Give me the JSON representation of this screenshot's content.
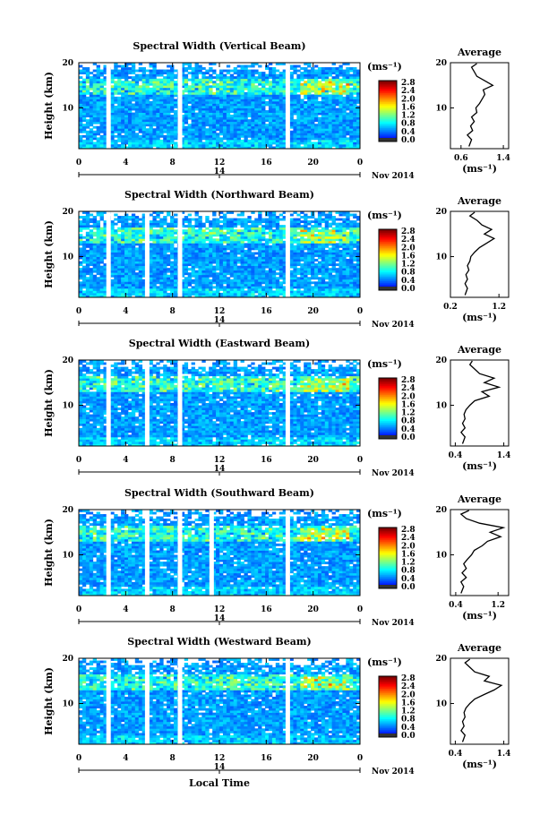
{
  "figure": {
    "xlabel": "Local Time",
    "date_label": "Nov 2014",
    "day_label": "14",
    "colorbar_unit": "(ms⁻¹)",
    "colorbar_ticks": [
      "0.0",
      "0.4",
      "0.8",
      "1.2",
      "1.6",
      "2.0",
      "2.4",
      "2.8"
    ],
    "profile_title": "Average",
    "profile_xlabel": "(ms⁻¹)",
    "ylabel": "Height (km)"
  },
  "chart_data": [
    {
      "type": "heatmap",
      "title": "Spectral Width (Vertical Beam)",
      "xlabel": "Local Time",
      "ylabel": "Height (km)",
      "x_ticks": [
        "0",
        "4",
        "8",
        "12",
        "16",
        "20",
        "0"
      ],
      "xlim": [
        0,
        24
      ],
      "y_ticks": [
        "10",
        "20"
      ],
      "ylim": [
        1,
        20
      ],
      "gaps_hours": [
        2.5,
        8.6,
        17.8
      ],
      "colorbar": {
        "unit": "(ms⁻¹)",
        "range": [
          0,
          3.0
        ]
      },
      "profile": {
        "title": "Average",
        "xlabel": "(ms⁻¹)",
        "x_ticks": [
          "0.6",
          "1.4"
        ],
        "xlim": [
          0.4,
          1.5
        ],
        "points": [
          [
            0.75,
            1.5
          ],
          [
            0.8,
            3
          ],
          [
            0.72,
            4
          ],
          [
            0.82,
            5
          ],
          [
            0.78,
            6
          ],
          [
            0.85,
            7
          ],
          [
            0.8,
            8
          ],
          [
            0.9,
            9
          ],
          [
            0.88,
            10
          ],
          [
            0.95,
            11
          ],
          [
            1.0,
            12
          ],
          [
            1.05,
            13
          ],
          [
            1.02,
            14
          ],
          [
            1.2,
            15
          ],
          [
            1.05,
            16
          ],
          [
            0.9,
            17
          ],
          [
            0.85,
            18
          ],
          [
            0.8,
            19
          ],
          [
            0.9,
            19.8
          ]
        ]
      }
    },
    {
      "type": "heatmap",
      "title": "Spectral Width (Northward Beam)",
      "xlabel": "Local Time",
      "ylabel": "Height (km)",
      "x_ticks": [
        "0",
        "4",
        "8",
        "12",
        "16",
        "20",
        "0"
      ],
      "xlim": [
        0,
        24
      ],
      "y_ticks": [
        "10",
        "20"
      ],
      "ylim": [
        1,
        20
      ],
      "gaps_hours": [
        2.5,
        5.8,
        8.6,
        17.8
      ],
      "colorbar": {
        "unit": "(ms⁻¹)",
        "range": [
          0,
          3.0
        ]
      },
      "profile": {
        "title": "Average",
        "xlabel": "(ms⁻¹)",
        "x_ticks": [
          "0.2",
          "1.2"
        ],
        "xlim": [
          0.2,
          1.4
        ],
        "points": [
          [
            0.5,
            1.5
          ],
          [
            0.55,
            3
          ],
          [
            0.5,
            4
          ],
          [
            0.55,
            5
          ],
          [
            0.52,
            6
          ],
          [
            0.58,
            7
          ],
          [
            0.55,
            8
          ],
          [
            0.6,
            9
          ],
          [
            0.62,
            10
          ],
          [
            0.7,
            11
          ],
          [
            0.8,
            12
          ],
          [
            0.95,
            13
          ],
          [
            1.1,
            14
          ],
          [
            0.9,
            15
          ],
          [
            1.05,
            16
          ],
          [
            0.85,
            17
          ],
          [
            0.75,
            18
          ],
          [
            0.6,
            19
          ],
          [
            0.7,
            19.8
          ]
        ]
      }
    },
    {
      "type": "heatmap",
      "title": "Spectral Width (Eastward Beam)",
      "xlabel": "Local Time",
      "ylabel": "Height (km)",
      "x_ticks": [
        "0",
        "4",
        "8",
        "12",
        "16",
        "20",
        "0"
      ],
      "xlim": [
        0,
        24
      ],
      "y_ticks": [
        "10",
        "20"
      ],
      "ylim": [
        1,
        20
      ],
      "gaps_hours": [
        2.5,
        5.8,
        8.6,
        17.8
      ],
      "colorbar": {
        "unit": "(ms⁻¹)",
        "range": [
          0,
          3.0
        ]
      },
      "profile": {
        "title": "Average",
        "xlabel": "(ms⁻¹)",
        "x_ticks": [
          "0.4",
          "1.4"
        ],
        "xlim": [
          0.3,
          1.5
        ],
        "points": [
          [
            0.55,
            1.5
          ],
          [
            0.6,
            3
          ],
          [
            0.52,
            4
          ],
          [
            0.6,
            5
          ],
          [
            0.55,
            6
          ],
          [
            0.6,
            7
          ],
          [
            0.58,
            8
          ],
          [
            0.62,
            9
          ],
          [
            0.7,
            10
          ],
          [
            0.8,
            11
          ],
          [
            1.1,
            12
          ],
          [
            0.95,
            13
          ],
          [
            1.3,
            14
          ],
          [
            1.0,
            15
          ],
          [
            1.2,
            16
          ],
          [
            0.9,
            17
          ],
          [
            0.8,
            18
          ],
          [
            0.7,
            19
          ],
          [
            0.75,
            19.8
          ]
        ]
      }
    },
    {
      "type": "heatmap",
      "title": "Spectral Width (Southward Beam)",
      "xlabel": "Local Time",
      "ylabel": "Height (km)",
      "x_ticks": [
        "0",
        "4",
        "8",
        "12",
        "16",
        "20",
        "0"
      ],
      "xlim": [
        0,
        24
      ],
      "y_ticks": [
        "10",
        "20"
      ],
      "ylim": [
        1,
        20
      ],
      "gaps_hours": [
        2.5,
        5.8,
        8.6,
        11.3,
        17.8
      ],
      "colorbar": {
        "unit": "(ms⁻¹)",
        "range": [
          0,
          3.0
        ]
      },
      "profile": {
        "title": "Average",
        "xlabel": "(ms⁻¹)",
        "x_ticks": [
          "0.4",
          "1.2"
        ],
        "xlim": [
          0.3,
          1.4
        ],
        "points": [
          [
            0.5,
            1.5
          ],
          [
            0.55,
            3
          ],
          [
            0.5,
            4
          ],
          [
            0.6,
            5
          ],
          [
            0.52,
            6
          ],
          [
            0.6,
            7
          ],
          [
            0.55,
            8
          ],
          [
            0.62,
            9
          ],
          [
            0.7,
            10
          ],
          [
            0.75,
            11
          ],
          [
            0.9,
            12
          ],
          [
            1.0,
            13
          ],
          [
            1.25,
            14
          ],
          [
            1.05,
            15
          ],
          [
            1.3,
            16
          ],
          [
            0.85,
            17
          ],
          [
            0.6,
            18
          ],
          [
            0.5,
            19
          ],
          [
            0.65,
            19.8
          ]
        ]
      }
    },
    {
      "type": "heatmap",
      "title": "Spectral Width (Westward Beam)",
      "xlabel": "Local Time",
      "ylabel": "Height (km)",
      "x_ticks": [
        "0",
        "4",
        "8",
        "12",
        "16",
        "20",
        "0"
      ],
      "xlim": [
        0,
        24
      ],
      "y_ticks": [
        "10",
        "20"
      ],
      "ylim": [
        1,
        20
      ],
      "gaps_hours": [
        2.5,
        5.8,
        8.6,
        17.8
      ],
      "colorbar": {
        "unit": "(ms⁻¹)",
        "range": [
          0,
          3.0
        ]
      },
      "profile": {
        "title": "Average",
        "xlabel": "(ms⁻¹)",
        "x_ticks": [
          "0.4",
          "1.4"
        ],
        "xlim": [
          0.3,
          1.5
        ],
        "points": [
          [
            0.55,
            1.5
          ],
          [
            0.6,
            3
          ],
          [
            0.52,
            4
          ],
          [
            0.58,
            5
          ],
          [
            0.55,
            6
          ],
          [
            0.6,
            7
          ],
          [
            0.58,
            8
          ],
          [
            0.62,
            9
          ],
          [
            0.7,
            10
          ],
          [
            0.8,
            11
          ],
          [
            1.0,
            12
          ],
          [
            1.2,
            13
          ],
          [
            1.35,
            14
          ],
          [
            1.0,
            15
          ],
          [
            1.1,
            16
          ],
          [
            0.8,
            17
          ],
          [
            0.7,
            18
          ],
          [
            0.6,
            19
          ],
          [
            0.7,
            19.8
          ]
        ]
      }
    }
  ]
}
